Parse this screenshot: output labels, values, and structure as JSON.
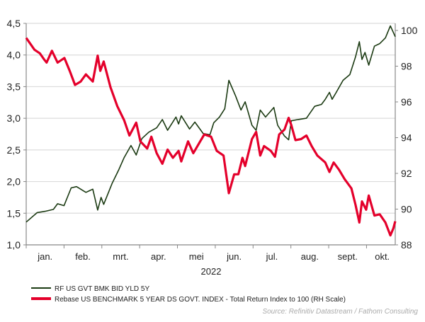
{
  "chart_data": {
    "type": "line",
    "title": "",
    "xlabel": "2022",
    "x_units": "months since 1 Jan 2022",
    "x_tick_labels": [
      "jan.",
      "feb.",
      "mrt.",
      "apr.",
      "mei",
      "jun.",
      "jul.",
      "aug.",
      "sept.",
      "okt."
    ],
    "left_axis": {
      "ylim": [
        1.0,
        4.5
      ],
      "ticks": [
        "1,0",
        "1,5",
        "2,0",
        "2,5",
        "3,0",
        "3,5",
        "4,0",
        "4,5"
      ],
      "tick_values": [
        1.0,
        1.5,
        2.0,
        2.5,
        3.0,
        3.5,
        4.0,
        4.5
      ]
    },
    "right_axis": {
      "ylim": [
        88,
        100
      ],
      "ticks": [
        "88",
        "90",
        "92",
        "94",
        "96",
        "98",
        "100"
      ],
      "tick_values": [
        88,
        90,
        92,
        94,
        96,
        98,
        100
      ]
    },
    "grid": true,
    "legend_position": "bottom",
    "source": "Source: Refinitiv Datastream / Fathom Consulting",
    "series": [
      {
        "name": "RF US GVT BMK BID YLD 5Y",
        "axis": "left",
        "color": "#1b3a12",
        "points": [
          [
            0,
            1.36
          ],
          [
            0.29,
            1.51
          ],
          [
            0.5,
            1.53
          ],
          [
            0.72,
            1.56
          ],
          [
            0.83,
            1.65
          ],
          [
            1.0,
            1.62
          ],
          [
            1.19,
            1.9
          ],
          [
            1.33,
            1.92
          ],
          [
            1.58,
            1.83
          ],
          [
            1.76,
            1.88
          ],
          [
            1.89,
            1.55
          ],
          [
            1.98,
            1.75
          ],
          [
            2.05,
            1.64
          ],
          [
            2.27,
            1.97
          ],
          [
            2.45,
            2.19
          ],
          [
            2.59,
            2.38
          ],
          [
            2.77,
            2.57
          ],
          [
            2.91,
            2.42
          ],
          [
            3.06,
            2.68
          ],
          [
            3.24,
            2.78
          ],
          [
            3.45,
            2.85
          ],
          [
            3.6,
            2.98
          ],
          [
            3.74,
            2.81
          ],
          [
            3.96,
            3.02
          ],
          [
            4.03,
            2.91
          ],
          [
            4.1,
            3.04
          ],
          [
            4.32,
            2.83
          ],
          [
            4.46,
            2.94
          ],
          [
            4.68,
            2.76
          ],
          [
            4.86,
            2.74
          ],
          [
            4.96,
            2.93
          ],
          [
            5.11,
            3.02
          ],
          [
            5.25,
            3.15
          ],
          [
            5.36,
            3.6
          ],
          [
            5.54,
            3.35
          ],
          [
            5.68,
            3.13
          ],
          [
            5.79,
            3.26
          ],
          [
            5.97,
            2.89
          ],
          [
            6.08,
            2.81
          ],
          [
            6.19,
            3.13
          ],
          [
            6.33,
            3.02
          ],
          [
            6.55,
            3.17
          ],
          [
            6.65,
            2.89
          ],
          [
            6.83,
            2.72
          ],
          [
            6.94,
            2.66
          ],
          [
            7.01,
            2.96
          ],
          [
            7.19,
            2.98
          ],
          [
            7.41,
            3.0
          ],
          [
            7.63,
            3.19
          ],
          [
            7.81,
            3.22
          ],
          [
            7.91,
            3.3
          ],
          [
            8.02,
            3.41
          ],
          [
            8.09,
            3.3
          ],
          [
            8.2,
            3.41
          ],
          [
            8.38,
            3.6
          ],
          [
            8.56,
            3.69
          ],
          [
            8.71,
            3.97
          ],
          [
            8.81,
            4.21
          ],
          [
            8.88,
            3.93
          ],
          [
            8.96,
            4.04
          ],
          [
            9.06,
            3.84
          ],
          [
            9.21,
            4.14
          ],
          [
            9.35,
            4.18
          ],
          [
            9.5,
            4.27
          ],
          [
            9.63,
            4.46
          ],
          [
            9.76,
            4.29
          ]
        ]
      },
      {
        "name": "Rebase US BENCHMARK 5 YEAR DS GOVT. INDEX - Total Return Index to 100 (RH Scale)",
        "axis": "right",
        "color": "#e4002b",
        "points": [
          [
            0,
            99.58
          ],
          [
            0.22,
            98.92
          ],
          [
            0.36,
            98.72
          ],
          [
            0.47,
            98.39
          ],
          [
            0.54,
            98.2
          ],
          [
            0.68,
            98.86
          ],
          [
            0.83,
            98.2
          ],
          [
            1.01,
            98.46
          ],
          [
            1.15,
            97.74
          ],
          [
            1.29,
            96.95
          ],
          [
            1.44,
            97.14
          ],
          [
            1.58,
            97.54
          ],
          [
            1.76,
            97.14
          ],
          [
            1.89,
            98.59
          ],
          [
            1.96,
            97.74
          ],
          [
            2.05,
            98.26
          ],
          [
            2.23,
            96.82
          ],
          [
            2.41,
            95.76
          ],
          [
            2.59,
            94.97
          ],
          [
            2.73,
            94.12
          ],
          [
            2.91,
            94.84
          ],
          [
            3.02,
            93.79
          ],
          [
            3.2,
            93.39
          ],
          [
            3.31,
            94.05
          ],
          [
            3.45,
            93.13
          ],
          [
            3.6,
            92.54
          ],
          [
            3.74,
            93.33
          ],
          [
            3.88,
            92.87
          ],
          [
            4.03,
            93.26
          ],
          [
            4.1,
            92.67
          ],
          [
            4.28,
            93.79
          ],
          [
            4.42,
            93.13
          ],
          [
            4.6,
            93.79
          ],
          [
            4.71,
            94.18
          ],
          [
            4.89,
            94.05
          ],
          [
            5.04,
            93.26
          ],
          [
            5.22,
            93.0
          ],
          [
            5.36,
            90.89
          ],
          [
            5.5,
            91.95
          ],
          [
            5.61,
            91.95
          ],
          [
            5.72,
            92.87
          ],
          [
            5.79,
            92.41
          ],
          [
            5.97,
            93.92
          ],
          [
            6.08,
            94.32
          ],
          [
            6.19,
            93.0
          ],
          [
            6.29,
            93.53
          ],
          [
            6.47,
            93.26
          ],
          [
            6.58,
            92.93
          ],
          [
            6.69,
            94.18
          ],
          [
            6.83,
            94.45
          ],
          [
            6.94,
            95.11
          ],
          [
            7.01,
            94.71
          ],
          [
            7.12,
            93.86
          ],
          [
            7.27,
            93.92
          ],
          [
            7.41,
            94.12
          ],
          [
            7.55,
            93.53
          ],
          [
            7.7,
            93.0
          ],
          [
            7.91,
            92.61
          ],
          [
            8.02,
            92.08
          ],
          [
            8.13,
            92.61
          ],
          [
            8.27,
            92.21
          ],
          [
            8.42,
            91.68
          ],
          [
            8.6,
            91.16
          ],
          [
            8.71,
            90.24
          ],
          [
            8.81,
            89.25
          ],
          [
            8.88,
            90.43
          ],
          [
            8.99,
            89.97
          ],
          [
            9.06,
            90.76
          ],
          [
            9.21,
            89.64
          ],
          [
            9.35,
            89.71
          ],
          [
            9.5,
            89.25
          ],
          [
            9.63,
            88.53
          ],
          [
            9.71,
            88.92
          ],
          [
            9.76,
            89.32
          ]
        ]
      }
    ]
  }
}
